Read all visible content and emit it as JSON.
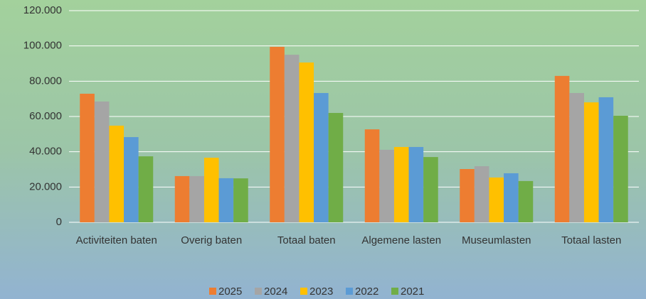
{
  "chart_data": {
    "type": "bar",
    "categories": [
      "Activiteiten baten",
      "Overig baten",
      "Totaal baten",
      "Algemene lasten",
      "Museumlasten",
      "Totaal lasten"
    ],
    "series": [
      {
        "name": "2025",
        "color": "#ed7d31",
        "values": [
          72900,
          26200,
          99500,
          52700,
          30200,
          83000
        ]
      },
      {
        "name": "2024",
        "color": "#a5a5a5",
        "values": [
          68500,
          26200,
          95000,
          41100,
          31800,
          73300
        ]
      },
      {
        "name": "2023",
        "color": "#ffc000",
        "values": [
          54800,
          36600,
          90600,
          42700,
          25400,
          68000
        ]
      },
      {
        "name": "2022",
        "color": "#5b9bd5",
        "values": [
          48300,
          25000,
          73300,
          42700,
          27800,
          70900
        ]
      },
      {
        "name": "2021",
        "color": "#70ad47",
        "values": [
          37400,
          24900,
          62000,
          37000,
          23400,
          60400
        ]
      }
    ],
    "ylim": [
      0,
      120000
    ],
    "yticks": [
      0,
      {
        "value": 20000,
        "label": "20.000"
      },
      {
        "value": 40000,
        "label": "40.000"
      },
      {
        "value": 60000,
        "label": "60.000"
      },
      {
        "value": 80000,
        "label": "80.000"
      },
      {
        "value": 100000,
        "label": "100.000"
      },
      {
        "value": 120000,
        "label": "120.000"
      }
    ],
    "grid": true,
    "legend": "bottom"
  }
}
